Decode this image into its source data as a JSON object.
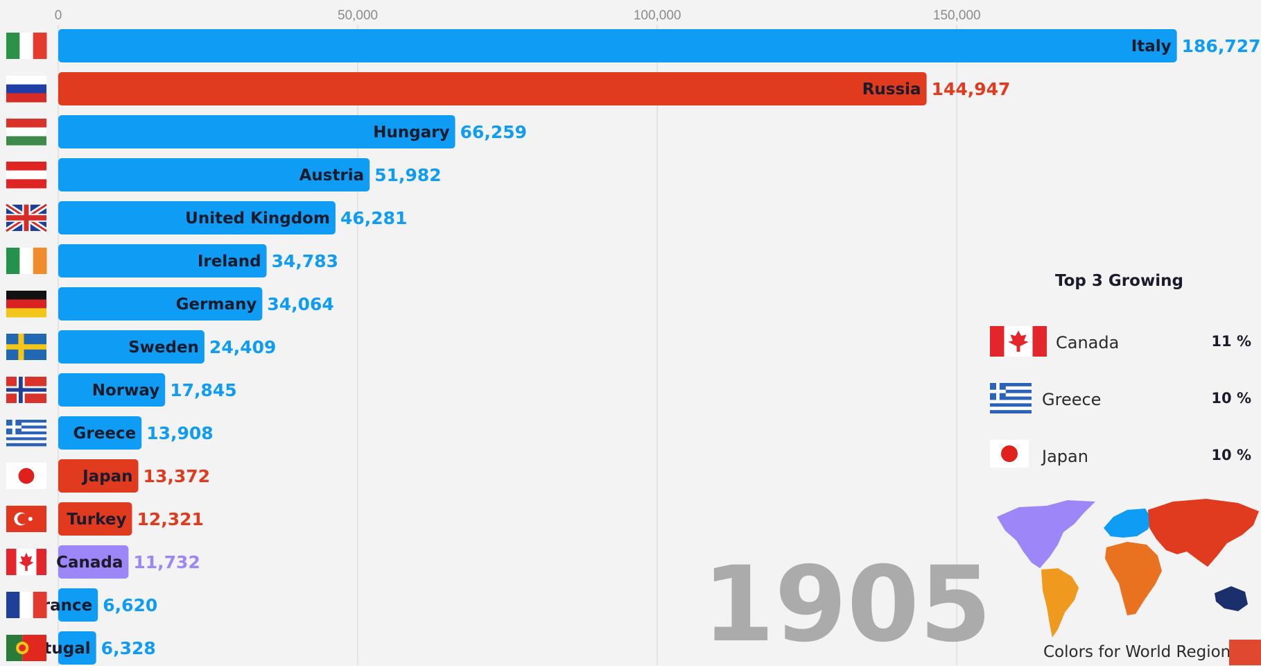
{
  "chart_data": {
    "type": "bar",
    "orientation": "horizontal",
    "xlim": [
      0,
      187000
    ],
    "ticks": [
      0,
      50000,
      100000,
      150000
    ],
    "tick_labels": [
      "0",
      "50,000",
      "100,000",
      "150,000"
    ],
    "grid": true,
    "year": "1905",
    "colors": {
      "europe": "#0f9cf5",
      "asia": "#e03a1f",
      "north_america": "#9d86f7",
      "africa": "#e8721f",
      "south_america": "#ef9a1e",
      "oceania": "#1a2f6b"
    },
    "bars": [
      {
        "name": "Italy",
        "value": 186727,
        "label": "186,727",
        "region": "europe",
        "flag": "italy-flag"
      },
      {
        "name": "Russia",
        "value": 144947,
        "label": "144,947",
        "region": "asia",
        "flag": "russia-flag"
      },
      {
        "name": "Hungary",
        "value": 66259,
        "label": "66,259",
        "region": "europe",
        "flag": "hungary-flag"
      },
      {
        "name": "Austria",
        "value": 51982,
        "label": "51,982",
        "region": "europe",
        "flag": "austria-flag"
      },
      {
        "name": "United Kingdom",
        "value": 46281,
        "label": "46,281",
        "region": "europe",
        "flag": "united-kingdom-flag"
      },
      {
        "name": "Ireland",
        "value": 34783,
        "label": "34,783",
        "region": "europe",
        "flag": "ireland-flag"
      },
      {
        "name": "Germany",
        "value": 34064,
        "label": "34,064",
        "region": "europe",
        "flag": "germany-flag"
      },
      {
        "name": "Sweden",
        "value": 24409,
        "label": "24,409",
        "region": "europe",
        "flag": "sweden-flag"
      },
      {
        "name": "Norway",
        "value": 17845,
        "label": "17,845",
        "region": "europe",
        "flag": "norway-flag"
      },
      {
        "name": "Greece",
        "value": 13908,
        "label": "13,908",
        "region": "europe",
        "flag": "greece-flag"
      },
      {
        "name": "Japan",
        "value": 13372,
        "label": "13,372",
        "region": "asia",
        "flag": "japan-flag"
      },
      {
        "name": "Turkey",
        "value": 12321,
        "label": "12,321",
        "region": "asia",
        "flag": "turkey-flag"
      },
      {
        "name": "Canada",
        "value": 11732,
        "label": "11,732",
        "region": "north_america",
        "flag": "canada-flag"
      },
      {
        "name": "France",
        "value": 6620,
        "label": "6,620",
        "region": "europe",
        "flag": "france-flag"
      },
      {
        "name": "Portugal",
        "value": 6328,
        "label": "6,328",
        "region": "europe",
        "flag": "portugal-flag"
      }
    ]
  },
  "growing": {
    "title": "Top 3 Growing",
    "items": [
      {
        "name": "Canada",
        "pct": "11 %",
        "flag": "canada-flag"
      },
      {
        "name": "Greece",
        "pct": "10 %",
        "flag": "greece-flag"
      },
      {
        "name": "Japan",
        "pct": "10 %",
        "flag": "japan-flag"
      }
    ]
  },
  "legend_map": {
    "caption": "Colors for World Regions",
    "icon": "world-map-icon"
  }
}
